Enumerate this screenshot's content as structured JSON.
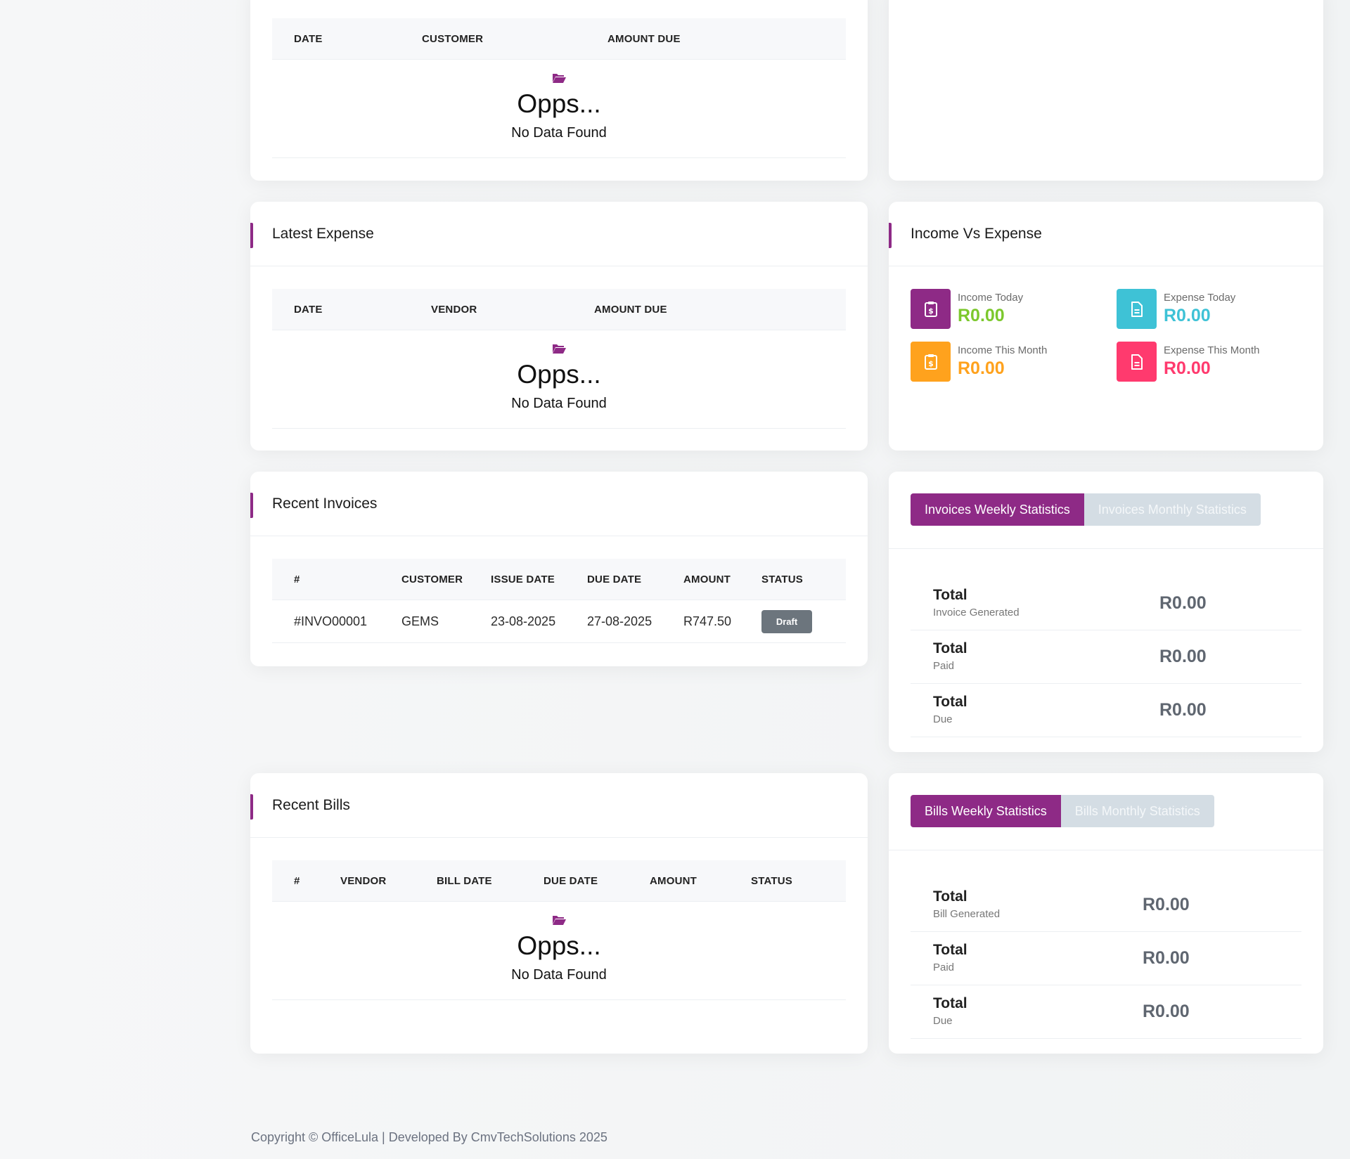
{
  "top_card": {
    "columns": [
      "DATE",
      "CUSTOMER",
      "AMOUNT DUE"
    ],
    "empty": {
      "title": "Opps...",
      "message": "No Data Found"
    }
  },
  "latest_expense": {
    "title": "Latest Expense",
    "columns": [
      "DATE",
      "VENDOR",
      "AMOUNT DUE"
    ],
    "empty": {
      "title": "Opps...",
      "message": "No Data Found"
    }
  },
  "income_vs_expense": {
    "title": "Income Vs Expense",
    "stats": [
      {
        "label": "Income Today",
        "value": "R0.00",
        "color": "#7cc82d",
        "icon_bg": "#8e2a86",
        "icon": "clipboard-dollar-icon"
      },
      {
        "label": "Expense Today",
        "value": "R0.00",
        "color": "#3ec2d6",
        "icon_bg": "#3ec2d6",
        "icon": "document-icon"
      },
      {
        "label": "Income This Month",
        "value": "R0.00",
        "color": "#ffa21d",
        "icon_bg": "#ffa21d",
        "icon": "clipboard-dollar-icon"
      },
      {
        "label": "Expense This Month",
        "value": "R0.00",
        "color": "#ff3a6e",
        "icon_bg": "#ff3a6e",
        "icon": "document-icon"
      }
    ]
  },
  "recent_invoices": {
    "title": "Recent Invoices",
    "columns": [
      "#",
      "CUSTOMER",
      "ISSUE DATE",
      "DUE DATE",
      "AMOUNT",
      "STATUS"
    ],
    "rows": [
      {
        "id": "#INVO00001",
        "customer": "GEMS",
        "issue_date": "23-08-2025",
        "due_date": "27-08-2025",
        "amount": "R747.50",
        "status": "Draft"
      }
    ]
  },
  "invoice_stats": {
    "tabs": [
      "Invoices Weekly Statistics",
      "Invoices Monthly Statistics"
    ],
    "rows": [
      {
        "label": "Total",
        "sub": "Invoice Generated",
        "value": "R0.00"
      },
      {
        "label": "Total",
        "sub": "Paid",
        "value": "R0.00"
      },
      {
        "label": "Total",
        "sub": "Due",
        "value": "R0.00"
      }
    ]
  },
  "recent_bills": {
    "title": "Recent Bills",
    "columns": [
      "#",
      "VENDOR",
      "BILL DATE",
      "DUE DATE",
      "AMOUNT",
      "STATUS"
    ],
    "empty": {
      "title": "Opps...",
      "message": "No Data Found"
    }
  },
  "bill_stats": {
    "tabs": [
      "Bills Weekly Statistics",
      "Bills Monthly Statistics"
    ],
    "rows": [
      {
        "label": "Total",
        "sub": "Bill Generated",
        "value": "R0.00"
      },
      {
        "label": "Total",
        "sub": "Paid",
        "value": "R0.00"
      },
      {
        "label": "Total",
        "sub": "Due",
        "value": "R0.00"
      }
    ]
  },
  "footer": {
    "text": "Copyright © OfficeLula | Developed By CmvTechSolutions 2025"
  },
  "colors": {
    "accent": "#8e2a86",
    "tab_inactive": "#d4dde4",
    "badge_draft": "#6c757d"
  }
}
